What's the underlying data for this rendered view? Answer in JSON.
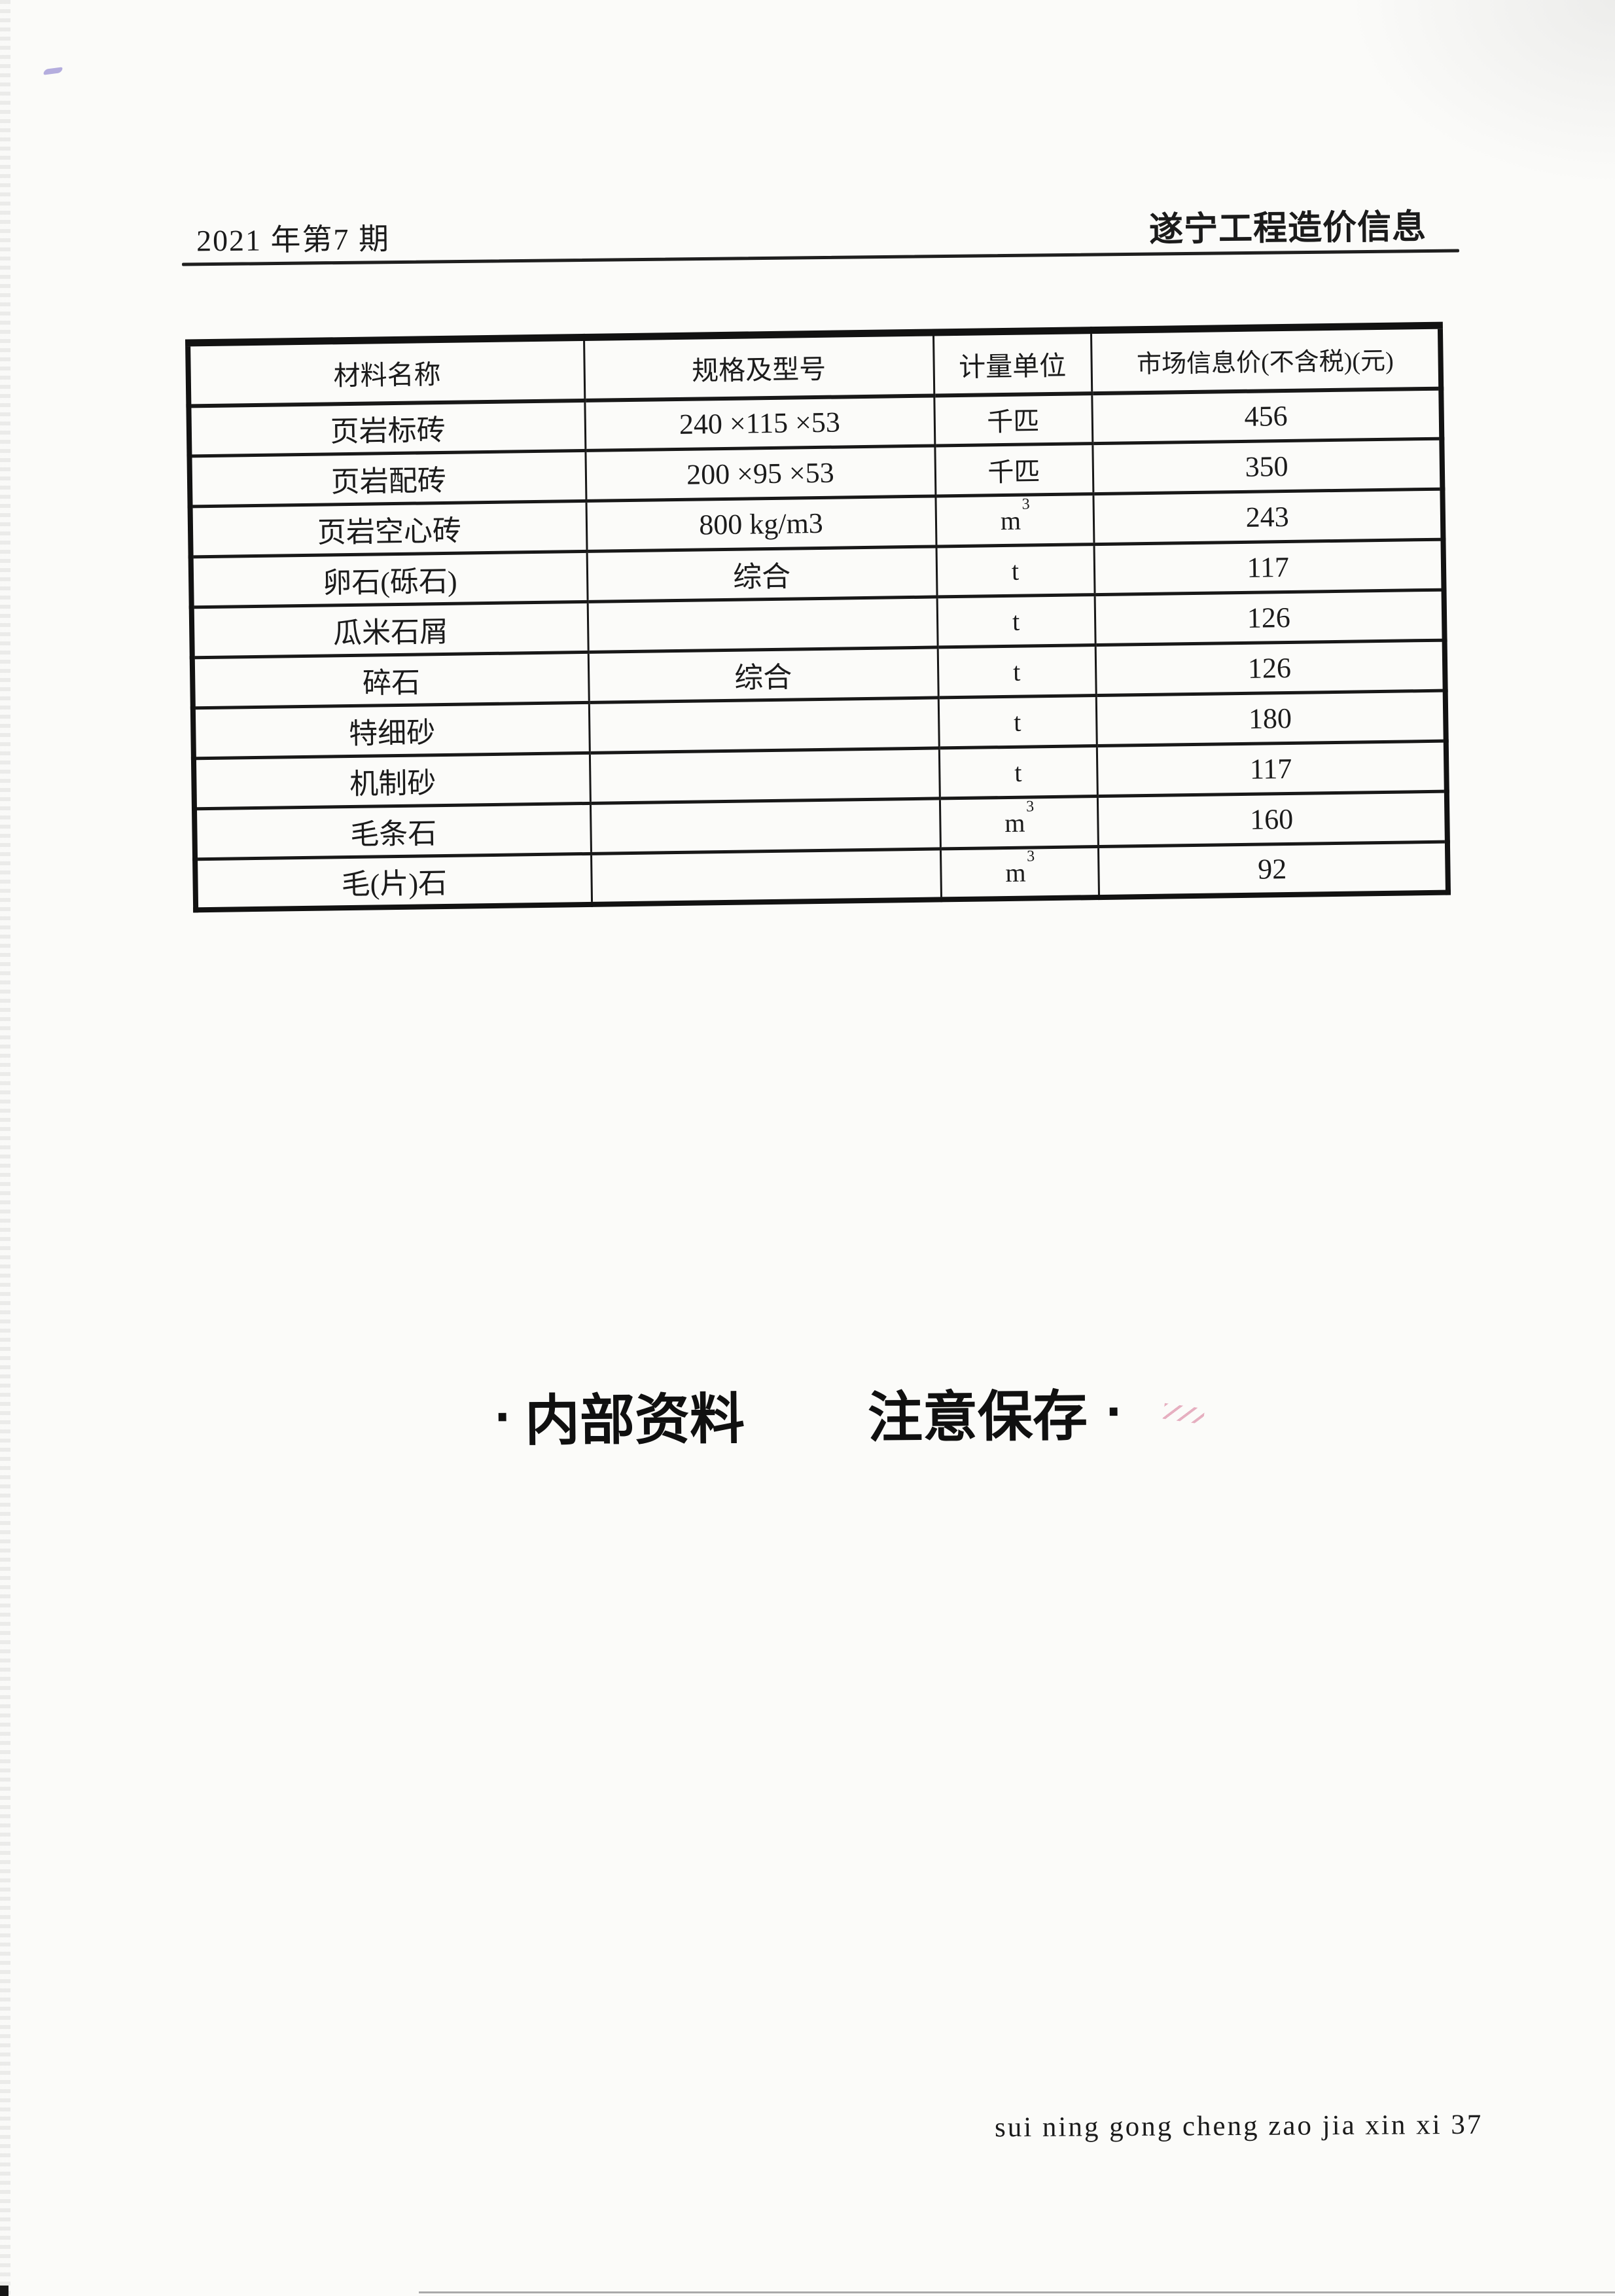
{
  "page_header": {
    "issue": "2021 年第7 期",
    "publication": "遂宁工程造价信息"
  },
  "table": {
    "columns": [
      "材料名称",
      "规格及型号",
      "计量单位",
      "市场信息价(不含税)(元)"
    ],
    "rows": [
      {
        "name": "页岩标砖",
        "spec": "240 ×115 ×53",
        "unit": "千匹",
        "price": "456"
      },
      {
        "name": "页岩配砖",
        "spec": "200 ×95 ×53",
        "unit": "千匹",
        "price": "350"
      },
      {
        "name": "页岩空心砖",
        "spec": "800 kg/m3",
        "unit": "m³",
        "price": "243"
      },
      {
        "name": "卵石(砾石)",
        "spec": "综合",
        "unit": "t",
        "price": "117"
      },
      {
        "name": "瓜米石屑",
        "spec": "",
        "unit": "t",
        "price": "126"
      },
      {
        "name": "碎石",
        "spec": "综合",
        "unit": "t",
        "price": "126"
      },
      {
        "name": "特细砂",
        "spec": "",
        "unit": "t",
        "price": "180"
      },
      {
        "name": "机制砂",
        "spec": "",
        "unit": "t",
        "price": "117"
      },
      {
        "name": "毛条石",
        "spec": "",
        "unit": "m³",
        "price": "160"
      },
      {
        "name": "毛(片)石",
        "spec": "",
        "unit": "m³",
        "price": "92"
      }
    ]
  },
  "notice": {
    "left_dot": "·",
    "internal": "内部资料",
    "keep": "注意保存",
    "right_dot": "·"
  },
  "footer": {
    "page_label": "sui ning gong cheng zao jia xin xi 37"
  }
}
